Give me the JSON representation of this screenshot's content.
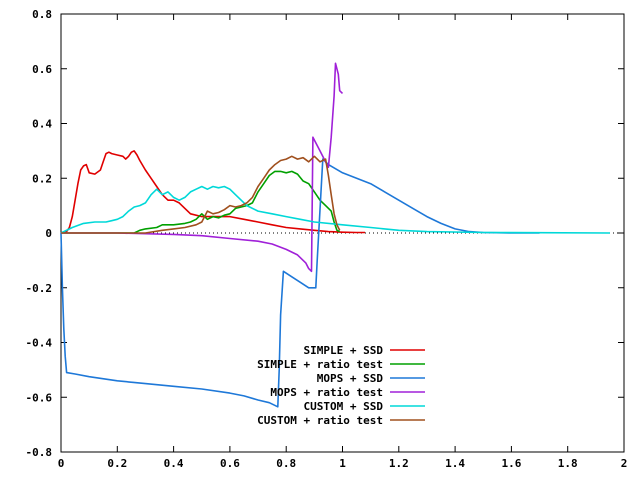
{
  "chart_data": {
    "type": "line",
    "title": "",
    "xlabel": "",
    "ylabel": "",
    "xlim": [
      0,
      2
    ],
    "ylim": [
      -0.8,
      0.8
    ],
    "x_ticks": [
      {
        "value": 0,
        "label": "0"
      },
      {
        "value": 0.2,
        "label": "0.2"
      },
      {
        "value": 0.4,
        "label": "0.4"
      },
      {
        "value": 0.6,
        "label": "0.6"
      },
      {
        "value": 0.8,
        "label": "0.8"
      },
      {
        "value": 1,
        "label": "1"
      },
      {
        "value": 1.2,
        "label": "1.2"
      },
      {
        "value": 1.4,
        "label": "1.4"
      },
      {
        "value": 1.6,
        "label": "1.6"
      },
      {
        "value": 1.8,
        "label": "1.8"
      },
      {
        "value": 2,
        "label": "2"
      }
    ],
    "y_ticks": [
      {
        "value": 0.8,
        "label": "0.8"
      },
      {
        "value": 0.6,
        "label": "0.6"
      },
      {
        "value": 0.4,
        "label": "0.4"
      },
      {
        "value": 0.2,
        "label": "0.2"
      },
      {
        "value": 0,
        "label": "0"
      },
      {
        "value": -0.2,
        "label": "-0.2"
      },
      {
        "value": -0.4,
        "label": "-0.4"
      },
      {
        "value": -0.6,
        "label": "-0.6"
      },
      {
        "value": -0.8,
        "label": "-0.8"
      }
    ],
    "grid": false,
    "legend_position": "bottom-right",
    "series": [
      {
        "name": "SIMPLE + SSD",
        "color": "#e00000",
        "points": [
          [
            0.0,
            0.0
          ],
          [
            0.02,
            0.005
          ],
          [
            0.03,
            0.02
          ],
          [
            0.04,
            0.06
          ],
          [
            0.05,
            0.12
          ],
          [
            0.06,
            0.18
          ],
          [
            0.07,
            0.23
          ],
          [
            0.08,
            0.245
          ],
          [
            0.09,
            0.25
          ],
          [
            0.1,
            0.22
          ],
          [
            0.12,
            0.215
          ],
          [
            0.14,
            0.23
          ],
          [
            0.15,
            0.26
          ],
          [
            0.16,
            0.29
          ],
          [
            0.17,
            0.295
          ],
          [
            0.18,
            0.29
          ],
          [
            0.2,
            0.285
          ],
          [
            0.22,
            0.28
          ],
          [
            0.23,
            0.27
          ],
          [
            0.24,
            0.28
          ],
          [
            0.25,
            0.295
          ],
          [
            0.26,
            0.3
          ],
          [
            0.27,
            0.285
          ],
          [
            0.28,
            0.265
          ],
          [
            0.3,
            0.23
          ],
          [
            0.32,
            0.2
          ],
          [
            0.34,
            0.17
          ],
          [
            0.36,
            0.14
          ],
          [
            0.38,
            0.12
          ],
          [
            0.4,
            0.12
          ],
          [
            0.42,
            0.11
          ],
          [
            0.44,
            0.09
          ],
          [
            0.46,
            0.07
          ],
          [
            0.5,
            0.06
          ],
          [
            0.55,
            0.06
          ],
          [
            0.6,
            0.06
          ],
          [
            0.65,
            0.05
          ],
          [
            0.7,
            0.04
          ],
          [
            0.75,
            0.03
          ],
          [
            0.8,
            0.02
          ],
          [
            0.85,
            0.015
          ],
          [
            0.9,
            0.01
          ],
          [
            0.95,
            0.005
          ],
          [
            1.0,
            0.003
          ],
          [
            1.05,
            0.002
          ],
          [
            1.08,
            0.002
          ]
        ]
      },
      {
        "name": "SIMPLE + ratio test",
        "color": "#00a000",
        "points": [
          [
            0.0,
            0.0
          ],
          [
            0.2,
            0.0
          ],
          [
            0.26,
            0.0
          ],
          [
            0.28,
            0.01
          ],
          [
            0.3,
            0.015
          ],
          [
            0.34,
            0.02
          ],
          [
            0.36,
            0.03
          ],
          [
            0.4,
            0.03
          ],
          [
            0.44,
            0.035
          ],
          [
            0.46,
            0.04
          ],
          [
            0.48,
            0.05
          ],
          [
            0.5,
            0.07
          ],
          [
            0.52,
            0.05
          ],
          [
            0.54,
            0.06
          ],
          [
            0.56,
            0.055
          ],
          [
            0.58,
            0.065
          ],
          [
            0.6,
            0.07
          ],
          [
            0.62,
            0.09
          ],
          [
            0.64,
            0.095
          ],
          [
            0.66,
            0.1
          ],
          [
            0.68,
            0.11
          ],
          [
            0.7,
            0.15
          ],
          [
            0.72,
            0.18
          ],
          [
            0.74,
            0.21
          ],
          [
            0.76,
            0.225
          ],
          [
            0.78,
            0.225
          ],
          [
            0.8,
            0.22
          ],
          [
            0.82,
            0.225
          ],
          [
            0.84,
            0.215
          ],
          [
            0.86,
            0.19
          ],
          [
            0.88,
            0.18
          ],
          [
            0.9,
            0.15
          ],
          [
            0.92,
            0.12
          ],
          [
            0.94,
            0.1
          ],
          [
            0.96,
            0.08
          ],
          [
            0.97,
            0.04
          ],
          [
            0.98,
            0.01
          ],
          [
            0.99,
            0.005
          ]
        ]
      },
      {
        "name": "MOPS + SSD",
        "color": "#1e78d8",
        "points": [
          [
            0.0,
            0.0
          ],
          [
            0.005,
            -0.2
          ],
          [
            0.01,
            -0.35
          ],
          [
            0.015,
            -0.45
          ],
          [
            0.02,
            -0.51
          ],
          [
            0.05,
            -0.515
          ],
          [
            0.1,
            -0.525
          ],
          [
            0.2,
            -0.54
          ],
          [
            0.3,
            -0.55
          ],
          [
            0.4,
            -0.56
          ],
          [
            0.5,
            -0.57
          ],
          [
            0.6,
            -0.585
          ],
          [
            0.65,
            -0.595
          ],
          [
            0.7,
            -0.61
          ],
          [
            0.74,
            -0.62
          ],
          [
            0.77,
            -0.635
          ],
          [
            0.775,
            -0.5
          ],
          [
            0.78,
            -0.3
          ],
          [
            0.79,
            -0.14
          ],
          [
            0.82,
            -0.16
          ],
          [
            0.85,
            -0.18
          ],
          [
            0.88,
            -0.2
          ],
          [
            0.905,
            -0.2
          ],
          [
            0.91,
            -0.1
          ],
          [
            0.93,
            0.27
          ],
          [
            0.95,
            0.25
          ],
          [
            1.0,
            0.22
          ],
          [
            1.05,
            0.2
          ],
          [
            1.1,
            0.18
          ],
          [
            1.15,
            0.15
          ],
          [
            1.2,
            0.12
          ],
          [
            1.25,
            0.09
          ],
          [
            1.3,
            0.06
          ],
          [
            1.35,
            0.035
          ],
          [
            1.4,
            0.015
          ],
          [
            1.45,
            0.005
          ],
          [
            1.5,
            0.002
          ],
          [
            1.6,
            0.0
          ],
          [
            1.7,
            0.0
          ]
        ]
      },
      {
        "name": "MOPS + ratio test",
        "color": "#a020d8",
        "points": [
          [
            0.0,
            0.0
          ],
          [
            0.2,
            0.0
          ],
          [
            0.4,
            -0.005
          ],
          [
            0.5,
            -0.01
          ],
          [
            0.6,
            -0.02
          ],
          [
            0.7,
            -0.03
          ],
          [
            0.75,
            -0.04
          ],
          [
            0.8,
            -0.06
          ],
          [
            0.84,
            -0.08
          ],
          [
            0.87,
            -0.11
          ],
          [
            0.88,
            -0.13
          ],
          [
            0.89,
            -0.14
          ],
          [
            0.895,
            0.35
          ],
          [
            0.92,
            0.3
          ],
          [
            0.935,
            0.27
          ],
          [
            0.95,
            0.24
          ],
          [
            0.96,
            0.35
          ],
          [
            0.97,
            0.5
          ],
          [
            0.975,
            0.62
          ],
          [
            0.985,
            0.58
          ],
          [
            0.99,
            0.52
          ],
          [
            1.0,
            0.51
          ]
        ]
      },
      {
        "name": "CUSTOM + SSD",
        "color": "#00d8d8",
        "points": [
          [
            0.0,
            0.0
          ],
          [
            0.04,
            0.02
          ],
          [
            0.08,
            0.035
          ],
          [
            0.12,
            0.04
          ],
          [
            0.16,
            0.04
          ],
          [
            0.18,
            0.045
          ],
          [
            0.2,
            0.05
          ],
          [
            0.22,
            0.06
          ],
          [
            0.24,
            0.08
          ],
          [
            0.26,
            0.095
          ],
          [
            0.28,
            0.1
          ],
          [
            0.3,
            0.11
          ],
          [
            0.32,
            0.14
          ],
          [
            0.34,
            0.16
          ],
          [
            0.36,
            0.14
          ],
          [
            0.38,
            0.15
          ],
          [
            0.4,
            0.13
          ],
          [
            0.42,
            0.12
          ],
          [
            0.44,
            0.13
          ],
          [
            0.46,
            0.15
          ],
          [
            0.48,
            0.16
          ],
          [
            0.5,
            0.17
          ],
          [
            0.52,
            0.16
          ],
          [
            0.54,
            0.17
          ],
          [
            0.56,
            0.165
          ],
          [
            0.58,
            0.17
          ],
          [
            0.6,
            0.16
          ],
          [
            0.62,
            0.14
          ],
          [
            0.64,
            0.12
          ],
          [
            0.66,
            0.1
          ],
          [
            0.7,
            0.08
          ],
          [
            0.75,
            0.07
          ],
          [
            0.8,
            0.06
          ],
          [
            0.85,
            0.05
          ],
          [
            0.9,
            0.04
          ],
          [
            1.0,
            0.03
          ],
          [
            1.1,
            0.02
          ],
          [
            1.2,
            0.01
          ],
          [
            1.3,
            0.005
          ],
          [
            1.5,
            0.002
          ],
          [
            1.7,
            0.001
          ],
          [
            1.95,
            0.0
          ]
        ]
      },
      {
        "name": "CUSTOM + ratio test",
        "color": "#a0501e",
        "points": [
          [
            0.0,
            0.0
          ],
          [
            0.2,
            0.0
          ],
          [
            0.3,
            0.0
          ],
          [
            0.36,
            0.01
          ],
          [
            0.4,
            0.015
          ],
          [
            0.44,
            0.02
          ],
          [
            0.48,
            0.03
          ],
          [
            0.5,
            0.04
          ],
          [
            0.52,
            0.08
          ],
          [
            0.54,
            0.07
          ],
          [
            0.56,
            0.075
          ],
          [
            0.58,
            0.085
          ],
          [
            0.6,
            0.1
          ],
          [
            0.62,
            0.095
          ],
          [
            0.64,
            0.1
          ],
          [
            0.66,
            0.11
          ],
          [
            0.68,
            0.13
          ],
          [
            0.7,
            0.17
          ],
          [
            0.72,
            0.2
          ],
          [
            0.74,
            0.23
          ],
          [
            0.76,
            0.25
          ],
          [
            0.78,
            0.265
          ],
          [
            0.8,
            0.27
          ],
          [
            0.82,
            0.28
          ],
          [
            0.84,
            0.27
          ],
          [
            0.86,
            0.275
          ],
          [
            0.88,
            0.26
          ],
          [
            0.9,
            0.28
          ],
          [
            0.92,
            0.26
          ],
          [
            0.94,
            0.27
          ],
          [
            0.95,
            0.21
          ],
          [
            0.96,
            0.14
          ],
          [
            0.97,
            0.07
          ],
          [
            0.98,
            0.03
          ],
          [
            0.99,
            0.01
          ]
        ]
      }
    ]
  }
}
